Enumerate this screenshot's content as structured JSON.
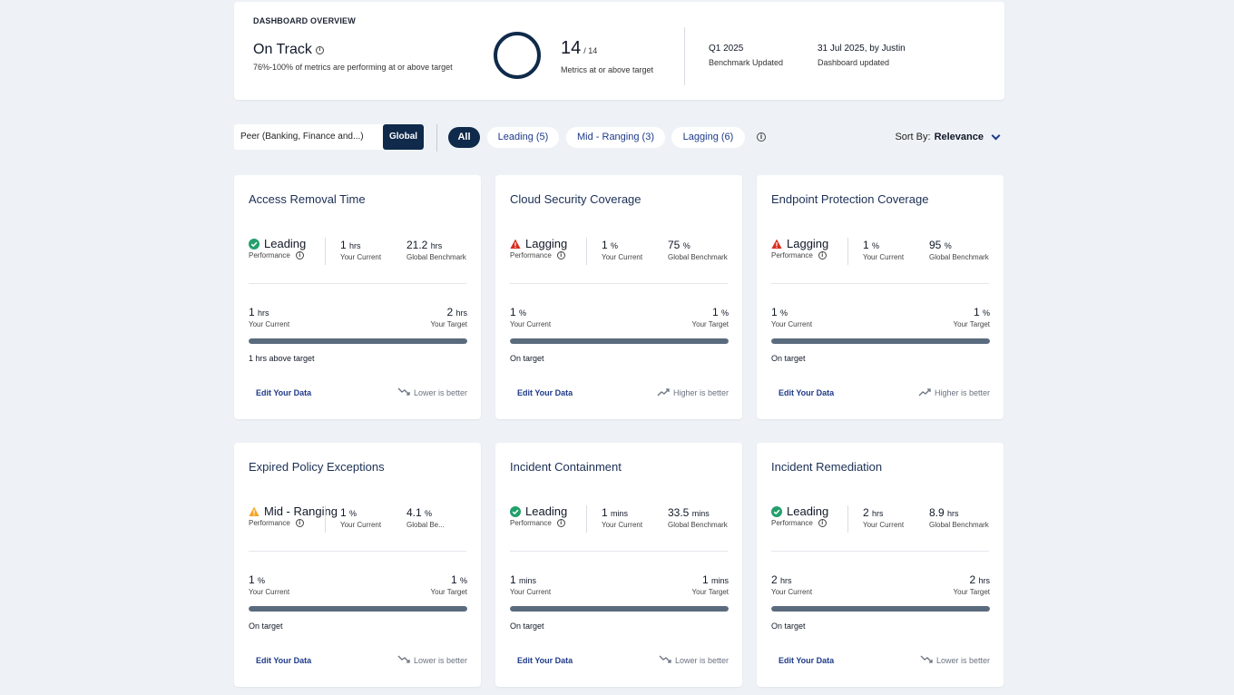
{
  "overview": {
    "heading": "DASHBOARD OVERVIEW",
    "status": "On Track",
    "subtitle": "76%-100% of metrics are performing at or above target",
    "count": "14",
    "total": "/ 14",
    "count_label": "Metrics at or above target",
    "benchmark_value": "Q1 2025",
    "benchmark_label": "Benchmark Updated",
    "updated_value": "31 Jul 2025, by Justin",
    "updated_label": "Dashboard updated",
    "ring_color": "#0f2a4a"
  },
  "filters": {
    "peer_label": "Peer (Banking, Finance and...)",
    "global_label": "Global",
    "pills": [
      {
        "label": "All",
        "active": true
      },
      {
        "label": "Leading (5)",
        "active": false
      },
      {
        "label": "Mid - Ranging (3)",
        "active": false
      },
      {
        "label": "Lagging (6)",
        "active": false
      }
    ],
    "sort_label": "Sort By:",
    "sort_value": "Relevance"
  },
  "colors": {
    "leading": "#22a06b",
    "lagging": "#d92d20",
    "mid": "#f5a524",
    "primary": "#0f2a4a",
    "bar": "#5a6b7d",
    "link": "#1e3a8a"
  },
  "cards": [
    {
      "title": "Access Removal Time",
      "status": "Leading",
      "status_type": "leading",
      "perf_label": "Performance",
      "current": "1",
      "current_unit": "hrs",
      "current_label": "Your Current",
      "benchmark": "21.2",
      "benchmark_unit": "hrs",
      "benchmark_label": "Global Benchmark",
      "cur2": "1",
      "cur2_unit": "hrs",
      "cur2_label": "Your Current",
      "target": "2",
      "target_unit": "hrs",
      "target_label": "Your Target",
      "progress": 1.0,
      "status_text": "1 hrs above target",
      "edit_label": "Edit Your Data",
      "better_word": "Lower",
      "better_suffix": "is better",
      "better_dir": "down"
    },
    {
      "title": "Cloud Security Coverage",
      "status": "Lagging",
      "status_type": "lagging",
      "perf_label": "Performance",
      "current": "1",
      "current_unit": "%",
      "current_label": "Your Current",
      "benchmark": "75",
      "benchmark_unit": "%",
      "benchmark_label": "Global Benchmark",
      "cur2": "1",
      "cur2_unit": "%",
      "cur2_label": "Your Current",
      "target": "1",
      "target_unit": "%",
      "target_label": "Your Target",
      "progress": 1.0,
      "status_text": "On target",
      "edit_label": "Edit Your Data",
      "better_word": "Higher",
      "better_suffix": "is better",
      "better_dir": "up"
    },
    {
      "title": "Endpoint Protection Coverage",
      "status": "Lagging",
      "status_type": "lagging",
      "perf_label": "Performance",
      "current": "1",
      "current_unit": "%",
      "current_label": "Your Current",
      "benchmark": "95",
      "benchmark_unit": "%",
      "benchmark_label": "Global Benchmark",
      "cur2": "1",
      "cur2_unit": "%",
      "cur2_label": "Your Current",
      "target": "1",
      "target_unit": "%",
      "target_label": "Your Target",
      "progress": 1.0,
      "status_text": "On target",
      "edit_label": "Edit Your Data",
      "better_word": "Higher",
      "better_suffix": "is better",
      "better_dir": "up"
    },
    {
      "title": "Expired Policy Exceptions",
      "status": "Mid - Ranging",
      "status_type": "mid",
      "perf_label": "Performance",
      "current": "1",
      "current_unit": "%",
      "current_label": "Your Current",
      "benchmark": "4.1",
      "benchmark_unit": "%",
      "benchmark_label": "Global Be...",
      "cur2": "1",
      "cur2_unit": "%",
      "cur2_label": "Your Current",
      "target": "1",
      "target_unit": "%",
      "target_label": "Your Target",
      "progress": 1.0,
      "status_text": "On target",
      "edit_label": "Edit Your Data",
      "better_word": "Lower",
      "better_suffix": "is better",
      "better_dir": "down"
    },
    {
      "title": "Incident Containment",
      "status": "Leading",
      "status_type": "leading",
      "perf_label": "Performance",
      "current": "1",
      "current_unit": "mins",
      "current_label": "Your Current",
      "benchmark": "33.5",
      "benchmark_unit": "mins",
      "benchmark_label": "Global Benchmark",
      "cur2": "1",
      "cur2_unit": "mins",
      "cur2_label": "Your Current",
      "target": "1",
      "target_unit": "mins",
      "target_label": "Your Target",
      "progress": 1.0,
      "status_text": "On target",
      "edit_label": "Edit Your Data",
      "better_word": "Lower",
      "better_suffix": "is better",
      "better_dir": "down"
    },
    {
      "title": "Incident Remediation",
      "status": "Leading",
      "status_type": "leading",
      "perf_label": "Performance",
      "current": "2",
      "current_unit": "hrs",
      "current_label": "Your Current",
      "benchmark": "8.9",
      "benchmark_unit": "hrs",
      "benchmark_label": "Global Benchmark",
      "cur2": "2",
      "cur2_unit": "hrs",
      "cur2_label": "Your Current",
      "target": "2",
      "target_unit": "hrs",
      "target_label": "Your Target",
      "progress": 1.0,
      "status_text": "On target",
      "edit_label": "Edit Your Data",
      "better_word": "Lower",
      "better_suffix": "is better",
      "better_dir": "down"
    }
  ]
}
